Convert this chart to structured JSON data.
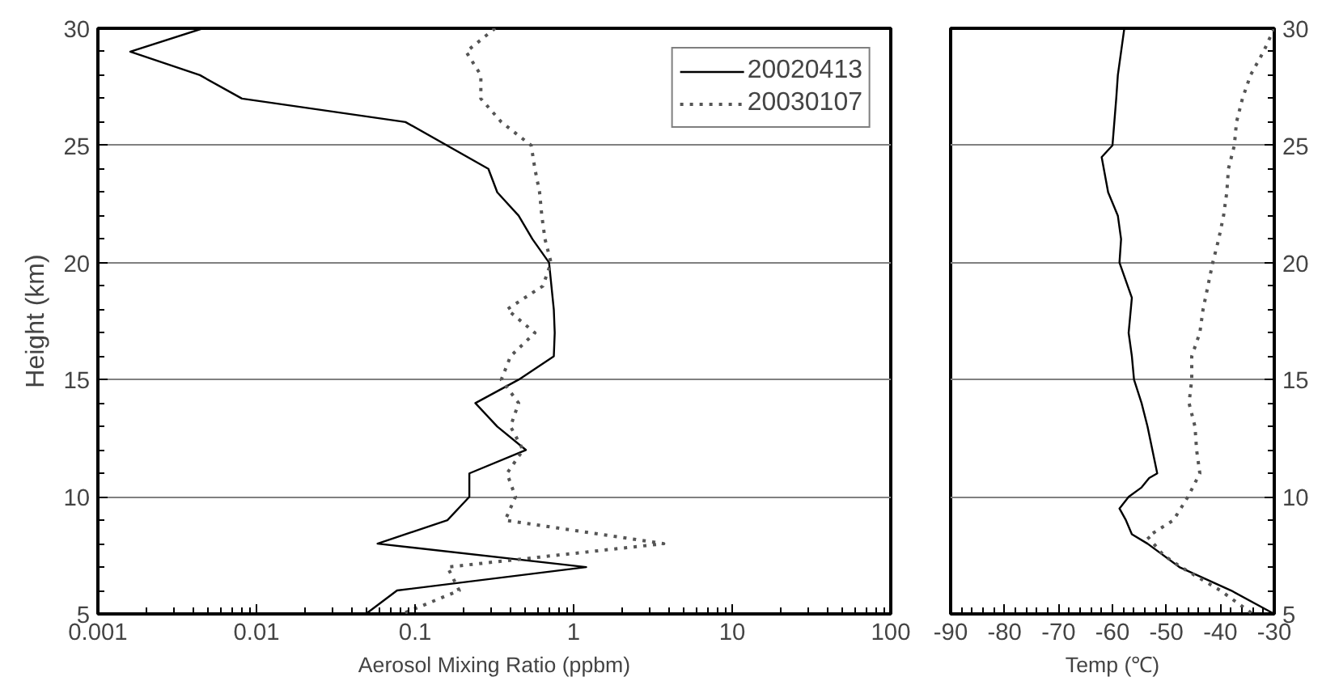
{
  "chart_data": [
    {
      "type": "line",
      "xlabel": "Aerosol Mixing Ratio (ppbm)",
      "ylabel": "Height (km)",
      "log": "x",
      "xlim": [
        0.001,
        100
      ],
      "xticks": [
        0.001,
        0.01,
        0.1,
        1,
        10,
        100
      ],
      "ylim": [
        5,
        30
      ],
      "yticks": [
        5,
        10,
        15,
        20,
        25,
        30
      ],
      "grid": "y",
      "legend": "top right",
      "series": [
        {
          "name": "20020413",
          "color": "#000000",
          "line_style": "solid",
          "x": [
            0.0046,
            0.0016,
            0.0044,
            0.0081,
            0.087,
            0.29,
            0.33,
            0.45,
            0.55,
            0.7,
            0.75,
            0.76,
            0.75,
            0.45,
            0.24,
            0.33,
            0.5,
            0.22,
            0.22,
            0.16,
            0.058,
            1.2,
            0.077,
            0.049
          ],
          "values": [
            30,
            29,
            28,
            27,
            26,
            24,
            23,
            22,
            21,
            20,
            18,
            17,
            16,
            15,
            14,
            13,
            12,
            11,
            10,
            9,
            8,
            7,
            6,
            5
          ]
        },
        {
          "name": "20030107",
          "color": "#555555",
          "line_style": "dotted",
          "x": [
            0.32,
            0.21,
            0.26,
            0.26,
            0.35,
            0.54,
            0.57,
            0.61,
            0.63,
            0.66,
            0.72,
            0.64,
            0.38,
            0.57,
            0.4,
            0.35,
            0.45,
            0.4,
            0.48,
            0.38,
            0.43,
            0.37,
            3.7,
            0.16,
            0.19,
            0.083
          ],
          "values": [
            30,
            29,
            28,
            27,
            26,
            25,
            24,
            23,
            22,
            21,
            20,
            19,
            18,
            17,
            16,
            15,
            14,
            13,
            12,
            11,
            10,
            9,
            8,
            7,
            6,
            5
          ]
        }
      ]
    },
    {
      "type": "line",
      "xlabel": "Temp (℃)",
      "xlim": [
        -90,
        -30
      ],
      "xticks": [
        -90,
        -80,
        -70,
        -60,
        -50,
        -40,
        -30
      ],
      "ylim": [
        5,
        30
      ],
      "yticks": [
        5,
        10,
        15,
        20,
        25,
        30
      ],
      "grid": "y",
      "series": [
        {
          "color": "#000000",
          "line_style": "solid",
          "x": [
            -57.8,
            -59,
            -59.3,
            -60,
            -62,
            -60.8,
            -59,
            -58.4,
            -58.7,
            -56.4,
            -57,
            -56.4,
            -56,
            -54.6,
            -53.5,
            -52.6,
            -51.7,
            -53.2,
            -54.6,
            -57,
            -58.7,
            -57.5,
            -56.4,
            -53.5,
            -47.6,
            -38,
            -30
          ],
          "values": [
            30,
            28,
            27,
            25,
            24.5,
            23,
            22,
            21,
            20,
            18.5,
            17,
            16,
            15,
            14,
            13,
            12,
            11,
            10.8,
            10.4,
            10,
            9.5,
            9,
            8.4,
            8,
            7,
            6,
            5
          ]
        },
        {
          "color": "#555555",
          "line_style": "dotted",
          "x": [
            -30,
            -32,
            -34.4,
            -35.9,
            -37,
            -37.4,
            -38.5,
            -38.8,
            -39.4,
            -40.3,
            -41.4,
            -42.3,
            -43.2,
            -43.8,
            -45.3,
            -45.3,
            -45.8,
            -44.7,
            -44.4,
            -43.8,
            -46,
            -48.7,
            -53.5,
            -50.5,
            -47.3,
            -40,
            -34
          ],
          "values": [
            30,
            29,
            28,
            27,
            26,
            25,
            24,
            23,
            22,
            21,
            20,
            19,
            18,
            17,
            16,
            15,
            14,
            13,
            12,
            11,
            10,
            9,
            8.3,
            7.5,
            7,
            6,
            5
          ]
        }
      ]
    }
  ]
}
